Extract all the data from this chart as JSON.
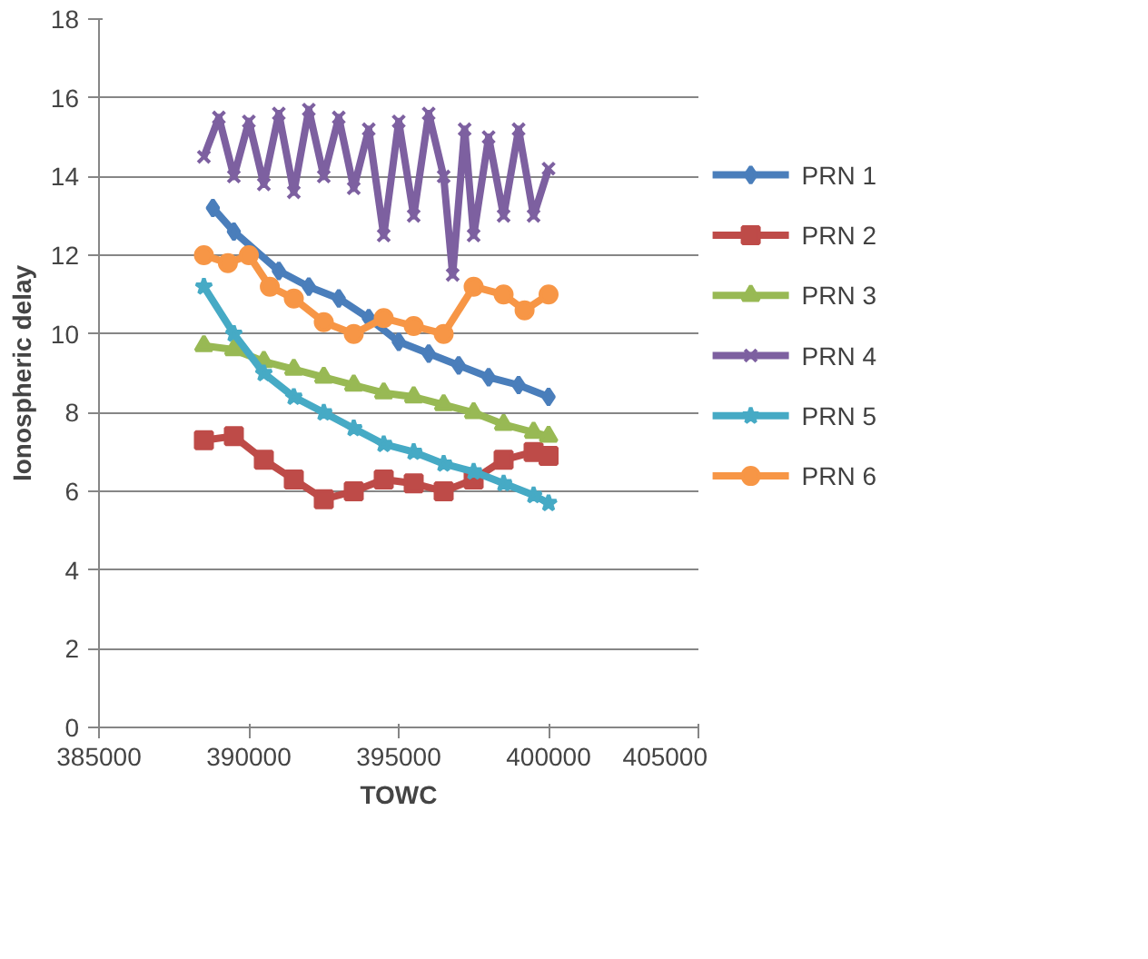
{
  "chart_data": {
    "type": "line",
    "xlabel": "TOWC",
    "ylabel": "Ionospheric delay",
    "xlim": [
      385000,
      405000
    ],
    "xticks": [
      385000,
      390000,
      395000,
      400000,
      405000
    ],
    "ylim": [
      0,
      18
    ],
    "yticks": [
      0,
      2,
      4,
      6,
      8,
      10,
      12,
      14,
      16,
      18
    ],
    "grid": "y",
    "legend": "right",
    "series": [
      {
        "name": "PRN 1",
        "color": "#4a7ebb",
        "marker": "diamond",
        "x": [
          388800,
          389500,
          391000,
          392000,
          393000,
          394000,
          395000,
          396000,
          397000,
          398000,
          399000,
          400000
        ],
        "values": [
          13.2,
          12.6,
          11.6,
          11.2,
          10.9,
          10.4,
          9.8,
          9.5,
          9.2,
          8.9,
          8.7,
          8.4
        ]
      },
      {
        "name": "PRN 2",
        "color": "#be4b48",
        "marker": "square",
        "x": [
          388500,
          389500,
          390500,
          391500,
          392500,
          393500,
          394500,
          395500,
          396500,
          397500,
          398500,
          399500,
          400000
        ],
        "values": [
          7.3,
          7.4,
          6.8,
          6.3,
          5.8,
          6.0,
          6.3,
          6.2,
          6.0,
          6.3,
          6.8,
          7.0,
          6.9
        ]
      },
      {
        "name": "PRN 3",
        "color": "#98b954",
        "marker": "triangle",
        "x": [
          388500,
          389500,
          390500,
          391500,
          392500,
          393500,
          394500,
          395500,
          396500,
          397500,
          398500,
          399500,
          400000
        ],
        "values": [
          9.7,
          9.6,
          9.3,
          9.1,
          8.9,
          8.7,
          8.5,
          8.4,
          8.2,
          8.0,
          7.7,
          7.5,
          7.4
        ]
      },
      {
        "name": "PRN 4",
        "color": "#7d60a0",
        "marker": "cross",
        "x": [
          388500,
          389000,
          389500,
          390000,
          390500,
          391000,
          391500,
          392000,
          392500,
          393000,
          393500,
          394000,
          394500,
          395000,
          395500,
          396000,
          396500,
          396800,
          397200,
          397500,
          398000,
          398500,
          399000,
          399500,
          400000
        ],
        "values": [
          14.5,
          15.5,
          14.0,
          15.4,
          13.8,
          15.6,
          13.6,
          15.7,
          14.0,
          15.5,
          13.7,
          15.2,
          12.5,
          15.4,
          13.0,
          15.6,
          14.0,
          11.5,
          15.2,
          12.5,
          15.0,
          13.0,
          15.2,
          13.0,
          14.2
        ]
      },
      {
        "name": "PRN 5",
        "color": "#46aac5",
        "marker": "star",
        "x": [
          388500,
          389500,
          390500,
          391500,
          392500,
          393500,
          394500,
          395500,
          396500,
          397500,
          398500,
          399500,
          400000
        ],
        "values": [
          11.2,
          10.0,
          9.0,
          8.4,
          8.0,
          7.6,
          7.2,
          7.0,
          6.7,
          6.5,
          6.2,
          5.9,
          5.7
        ]
      },
      {
        "name": "PRN 6",
        "color": "#f79646",
        "marker": "circle",
        "x": [
          388500,
          389300,
          390000,
          390700,
          391500,
          392500,
          393500,
          394500,
          395500,
          396500,
          397500,
          398500,
          399200,
          400000
        ],
        "values": [
          12.0,
          11.8,
          12.0,
          11.2,
          10.9,
          10.3,
          10.0,
          10.4,
          10.2,
          10.0,
          11.2,
          11.0,
          10.6,
          11.0
        ]
      }
    ]
  }
}
